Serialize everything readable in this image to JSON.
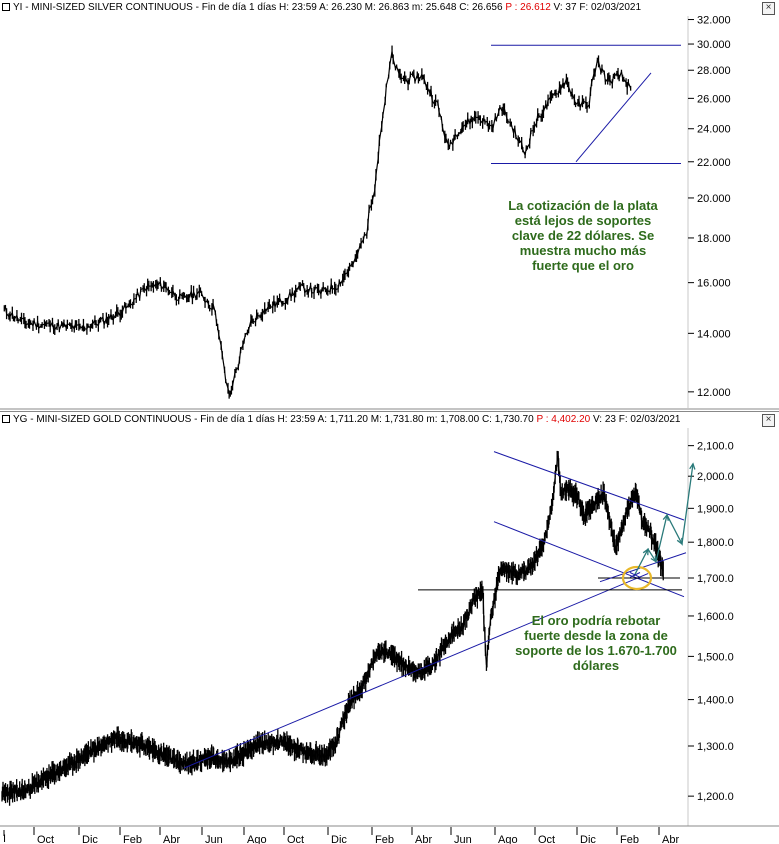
{
  "silver": {
    "header": {
      "symbol": "YI - MINI-SIZED SILVER CONTINUOUS",
      "period": "Fin de día 1 días",
      "h": "H: 23:59",
      "a": "A: 26.230",
      "m": "M: 26.863",
      "low": "m: 25.648",
      "c": "C: 26.656",
      "p": "P : 26.612",
      "v": "V: 37",
      "f": "F: 02/03/2021"
    },
    "annotation": "La cotización de la plata está lejos de soportes clave de 22 dólares. Se muestra mucho más fuerte que el oro"
  },
  "gold": {
    "header": {
      "symbol": "YG - MINI-SIZED GOLD CONTINUOUS",
      "period": "Fin de día 1 días",
      "h": "H: 23:59",
      "a": "A: 1,711.20",
      "m": "M: 1,731.80",
      "low": "m: 1,708.00",
      "c": "C: 1,730.70",
      "p": "P : 4,402.20",
      "v": "V: 23",
      "f": "F: 02/03/2021"
    },
    "annotation": "El oro podría rebotar fuerte desde la zona de soporte de los 1.670-1.700 dólares"
  },
  "chart_data": [
    {
      "type": "line",
      "scale": "log",
      "ylim": [
        11.5,
        32.3
      ],
      "yticks": [
        "32.000",
        "30.000",
        "28.000",
        "26.000",
        "24.000",
        "22.000",
        "20.000",
        "18.000",
        "16.000",
        "14.000",
        "12.000"
      ],
      "series": [
        {
          "x": [
            "2019-09-03",
            "2019-09-20",
            "2019-10-15",
            "2019-11-10",
            "2019-12-01",
            "2019-12-20",
            "2020-01-05",
            "2020-01-20",
            "2020-02-05",
            "2020-02-20",
            "2020-03-05",
            "2020-03-10",
            "2020-03-16",
            "2020-03-18",
            "2020-03-25",
            "2020-04-05",
            "2020-04-20",
            "2020-05-05",
            "2020-05-20",
            "2020-06-05",
            "2020-06-20",
            "2020-07-05",
            "2020-07-15",
            "2020-07-22",
            "2020-07-28",
            "2020-08-06",
            "2020-08-12",
            "2020-08-20",
            "2020-09-01",
            "2020-09-15",
            "2020-09-24",
            "2020-10-05",
            "2020-10-20",
            "2020-11-01",
            "2020-11-10",
            "2020-11-20",
            "2020-11-30",
            "2020-12-10",
            "2020-12-22",
            "2021-01-05",
            "2021-01-15",
            "2021-01-25",
            "2021-02-01",
            "2021-02-10",
            "2021-02-22",
            "2021-03-02"
          ],
          "values": [
            14.9,
            14.4,
            14.3,
            14.2,
            14.5,
            15.0,
            15.8,
            15.9,
            15.3,
            15.6,
            14.9,
            13.5,
            12.0,
            11.9,
            12.9,
            14.4,
            15.0,
            15.3,
            15.8,
            15.6,
            15.9,
            16.9,
            18.3,
            20.6,
            24.2,
            29.1,
            27.6,
            27.3,
            27.6,
            25.5,
            22.8,
            24.1,
            24.8,
            24.1,
            25.4,
            24.0,
            22.5,
            24.5,
            25.8,
            27.3,
            25.5,
            25.7,
            28.7,
            27.2,
            27.6,
            26.7
          ]
        }
      ],
      "lines": [
        {
          "name": "resistance-30",
          "y": [
            29.9,
            29.9
          ]
        },
        {
          "name": "support-22",
          "y": [
            21.9,
            21.9
          ]
        },
        {
          "name": "uptrend",
          "y": [
            22.0,
            27.8
          ]
        }
      ],
      "x_ticks": [
        "Oct",
        "Dic",
        "Feb",
        "Abr",
        "Jun",
        "Ago",
        "Oct",
        "Dic",
        "Feb",
        "Abr"
      ]
    },
    {
      "type": "line",
      "scale": "log",
      "ylim": [
        1170,
        2160
      ],
      "yticks": [
        "2,100.0",
        "2,000.0",
        "1,900.0",
        "1,800.0",
        "1,700.0",
        "1,600.0",
        "1,500.0",
        "1,400.0",
        "1,300.0",
        "1,200.0"
      ],
      "series": [
        {
          "x": [
            "2017-08-01",
            "2017-09-15",
            "2017-11-01",
            "2017-12-15",
            "2018-02-01",
            "2018-03-15",
            "2018-05-01",
            "2018-06-15",
            "2018-08-01",
            "2018-09-15",
            "2018-11-01",
            "2018-12-15",
            "2019-02-01",
            "2019-03-15",
            "2019-05-01",
            "2019-05-25",
            "2019-06-20",
            "2019-07-15",
            "2019-08-15",
            "2019-09-05",
            "2019-10-01",
            "2019-11-01",
            "2019-12-01",
            "2020-01-08",
            "2020-01-30",
            "2020-02-24",
            "2020-03-10",
            "2020-03-17",
            "2020-03-25",
            "2020-04-15",
            "2020-05-15",
            "2020-06-15",
            "2020-07-10",
            "2020-07-24",
            "2020-08-06",
            "2020-08-12",
            "2020-08-25",
            "2020-09-15",
            "2020-09-25",
            "2020-10-15",
            "2020-11-05",
            "2020-11-28",
            "2020-12-20",
            "2021-01-06",
            "2021-01-20",
            "2021-02-05",
            "2021-02-15",
            "2021-03-02"
          ],
          "values": [
            1205,
            1210,
            1238,
            1262,
            1294,
            1318,
            1305,
            1282,
            1262,
            1276,
            1270,
            1302,
            1310,
            1292,
            1278,
            1310,
            1392,
            1428,
            1512,
            1512,
            1482,
            1462,
            1478,
            1552,
            1572,
            1648,
            1665,
            1472,
            1590,
            1732,
            1708,
            1728,
            1802,
            1898,
            2065,
            1945,
            1960,
            1938,
            1876,
            1910,
            1945,
            1778,
            1888,
            1950,
            1862,
            1828,
            1790,
            1720
          ]
        }
      ],
      "lines": [
        {
          "name": "long-uptrend"
        },
        {
          "name": "channel-upper"
        },
        {
          "name": "channel-lower"
        },
        {
          "name": "support-1670",
          "y": [
            1668,
            1668
          ]
        },
        {
          "name": "support-1700",
          "y": [
            1700,
            1700
          ]
        }
      ],
      "projection": {
        "values": [
          1705,
          1780,
          1745,
          1880,
          1795,
          2040
        ]
      },
      "x_ticks": [
        "Oct",
        "Dic",
        "Feb",
        "Abr",
        "Jun",
        "Ago",
        "Oct",
        "Dic",
        "Feb",
        "Abr",
        "Jun",
        "Ago",
        "Oct",
        "Dic",
        "Feb",
        "Abr"
      ]
    }
  ]
}
